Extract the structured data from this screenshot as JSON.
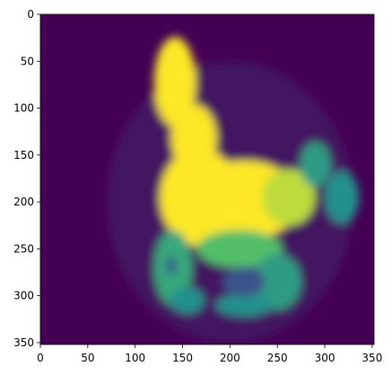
{
  "chart_data": {
    "type": "heatmap",
    "colormap": "viridis",
    "title": "",
    "xlabel": "",
    "ylabel": "",
    "xlim": [
      0,
      352
    ],
    "ylim": [
      352,
      0
    ],
    "grid": false,
    "legend": "none",
    "x_ticks": [
      {
        "value": 0,
        "label": "0"
      },
      {
        "value": 50,
        "label": "50"
      },
      {
        "value": 100,
        "label": "100"
      },
      {
        "value": 150,
        "label": "150"
      },
      {
        "value": 200,
        "label": "200"
      },
      {
        "value": 250,
        "label": "250"
      },
      {
        "value": 300,
        "label": "300"
      },
      {
        "value": 350,
        "label": "350"
      }
    ],
    "y_ticks": [
      {
        "value": 0,
        "label": "0"
      },
      {
        "value": 50,
        "label": "50"
      },
      {
        "value": 100,
        "label": "100"
      },
      {
        "value": 150,
        "label": "150"
      },
      {
        "value": 200,
        "label": "200"
      },
      {
        "value": 250,
        "label": "250"
      },
      {
        "value": 300,
        "label": "300"
      },
      {
        "value": 350,
        "label": "350"
      }
    ],
    "background_value": 0.0,
    "features": [
      {
        "name": "head",
        "shape": "ellipse",
        "cx": 142,
        "cy": 72,
        "rx": 22,
        "ry": 48,
        "value": 1.0
      },
      {
        "name": "neck",
        "shape": "ellipse",
        "cx": 162,
        "cy": 132,
        "rx": 24,
        "ry": 36,
        "value": 1.0
      },
      {
        "name": "chest",
        "shape": "ellipse",
        "cx": 168,
        "cy": 195,
        "rx": 42,
        "ry": 52,
        "value": 1.0
      },
      {
        "name": "body",
        "shape": "ellipse",
        "cx": 215,
        "cy": 198,
        "rx": 60,
        "ry": 42,
        "value": 1.0
      },
      {
        "name": "rump",
        "shape": "ellipse",
        "cx": 262,
        "cy": 195,
        "rx": 28,
        "ry": 30,
        "value": 0.9
      },
      {
        "name": "tail-upper",
        "shape": "ellipse",
        "cx": 290,
        "cy": 160,
        "rx": 16,
        "ry": 24,
        "value": 0.55
      },
      {
        "name": "tail-lower",
        "shape": "ellipse",
        "cx": 318,
        "cy": 195,
        "rx": 18,
        "ry": 28,
        "value": 0.5
      },
      {
        "name": "front-legs",
        "shape": "ellipse",
        "cx": 140,
        "cy": 270,
        "rx": 20,
        "ry": 40,
        "value": 0.6
      },
      {
        "name": "front-hoof",
        "shape": "ellipse",
        "cx": 155,
        "cy": 305,
        "rx": 18,
        "ry": 14,
        "value": 0.5
      },
      {
        "name": "belly-arc",
        "shape": "ellipse",
        "cx": 210,
        "cy": 250,
        "rx": 45,
        "ry": 20,
        "value": 0.7
      },
      {
        "name": "hind-legs",
        "shape": "ellipse",
        "cx": 250,
        "cy": 285,
        "rx": 25,
        "ry": 30,
        "value": 0.55
      },
      {
        "name": "hind-hoof",
        "shape": "ellipse",
        "cx": 215,
        "cy": 310,
        "rx": 30,
        "ry": 12,
        "value": 0.5
      },
      {
        "name": "leg-gap",
        "shape": "ellipse",
        "cx": 215,
        "cy": 285,
        "rx": 22,
        "ry": 16,
        "value": 0.25
      },
      {
        "name": "leg-gap-left",
        "shape": "ellipse",
        "cx": 138,
        "cy": 268,
        "rx": 6,
        "ry": 10,
        "value": 0.3
      },
      {
        "name": "halo",
        "shape": "ellipse",
        "cx": 200,
        "cy": 200,
        "rx": 130,
        "ry": 150,
        "value": 0.06
      }
    ]
  }
}
